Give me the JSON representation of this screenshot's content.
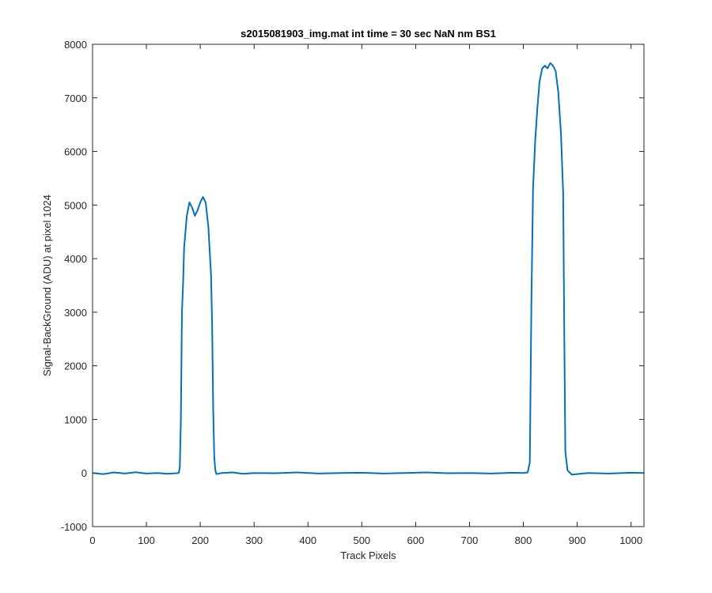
{
  "chart_data": {
    "type": "line",
    "title": "s2015081903_img.mat int time = 30 sec  NaN nm BS1",
    "xlabel": "Track Pixels",
    "ylabel": "Signal-BackGround (ADU) at pixel 1024",
    "xlim": [
      0,
      1024
    ],
    "ylim": [
      -1000,
      8000
    ],
    "xticks": [
      0,
      100,
      200,
      300,
      400,
      500,
      600,
      700,
      800,
      900,
      1000
    ],
    "yticks": [
      -1000,
      0,
      1000,
      2000,
      3000,
      4000,
      5000,
      6000,
      7000,
      8000
    ],
    "grid": false,
    "line_color": "#0072BD",
    "series": [
      {
        "x": [
          0,
          20,
          40,
          60,
          80,
          100,
          120,
          140,
          155,
          160,
          162,
          164,
          166,
          168,
          170,
          175,
          180,
          185,
          190,
          195,
          200,
          205,
          210,
          215,
          220,
          222,
          224,
          226,
          228,
          230,
          240,
          260,
          280,
          300,
          340,
          380,
          420,
          460,
          500,
          540,
          580,
          620,
          660,
          700,
          740,
          780,
          800,
          808,
          812,
          815,
          818,
          822,
          826,
          830,
          835,
          840,
          845,
          850,
          855,
          860,
          865,
          870,
          874,
          876,
          878,
          882,
          890,
          920,
          960,
          1000,
          1024
        ],
        "y": [
          0,
          -20,
          10,
          -10,
          15,
          -10,
          0,
          -15,
          -5,
          0,
          100,
          1000,
          3000,
          3500,
          4200,
          4800,
          5050,
          4950,
          4800,
          4900,
          5050,
          5150,
          5050,
          4600,
          3700,
          2800,
          1200,
          300,
          50,
          -20,
          0,
          10,
          -15,
          0,
          -5,
          10,
          -10,
          0,
          5,
          -10,
          0,
          10,
          -5,
          0,
          -10,
          5,
          0,
          10,
          200,
          3200,
          5300,
          6200,
          6800,
          7300,
          7550,
          7600,
          7550,
          7650,
          7600,
          7500,
          7100,
          6300,
          5200,
          2600,
          400,
          50,
          -30,
          0,
          -10,
          5,
          0
        ]
      }
    ]
  }
}
